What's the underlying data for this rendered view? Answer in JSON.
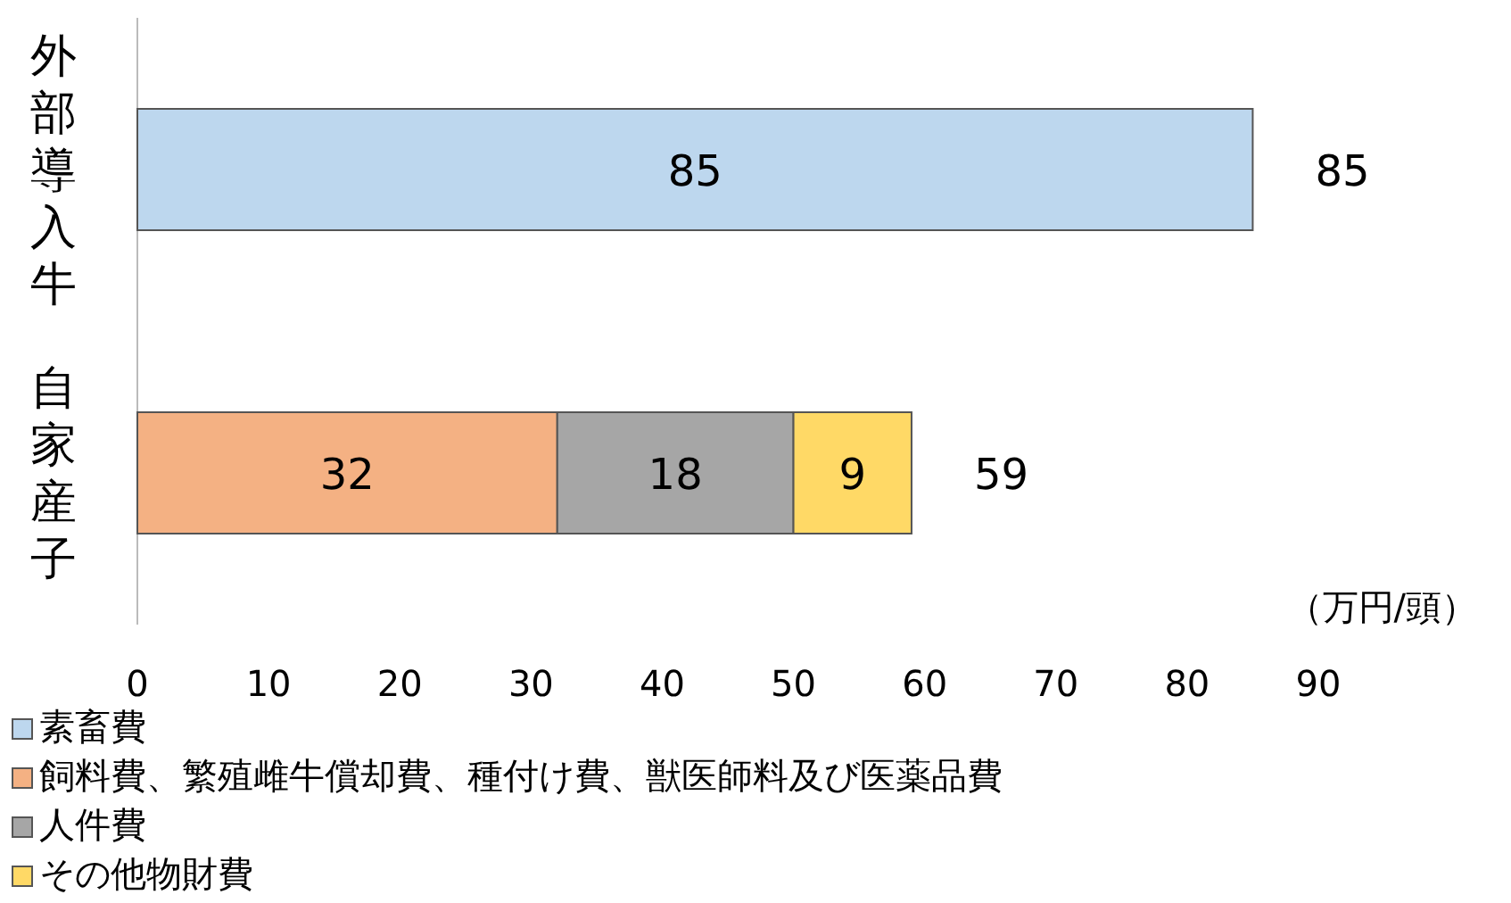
{
  "chart_data": {
    "type": "bar",
    "orientation": "horizontal",
    "stacked": true,
    "categories": [
      "外部導入牛",
      "自家産子"
    ],
    "series": [
      {
        "name": "素畜費",
        "color": "#bdd7ee",
        "values": [
          85,
          null
        ]
      },
      {
        "name": "飼料費、繁殖雌牛償却費、種付け費、獣医師料及び医薬品費",
        "color": "#f4b183",
        "values": [
          null,
          32
        ]
      },
      {
        "name": "人件費",
        "color": "#a6a6a6",
        "values": [
          null,
          18
        ]
      },
      {
        "name": "その他物財費",
        "color": "#ffd966",
        "values": [
          null,
          9
        ]
      }
    ],
    "xlim": [
      0,
      90
    ],
    "xticks": [
      0,
      10,
      20,
      30,
      40,
      50,
      60,
      70,
      80,
      90
    ],
    "data_labels": true,
    "totals": [
      "85",
      "59"
    ],
    "annotations": [
      "（万円/頭）"
    ],
    "legend": "bottom"
  }
}
